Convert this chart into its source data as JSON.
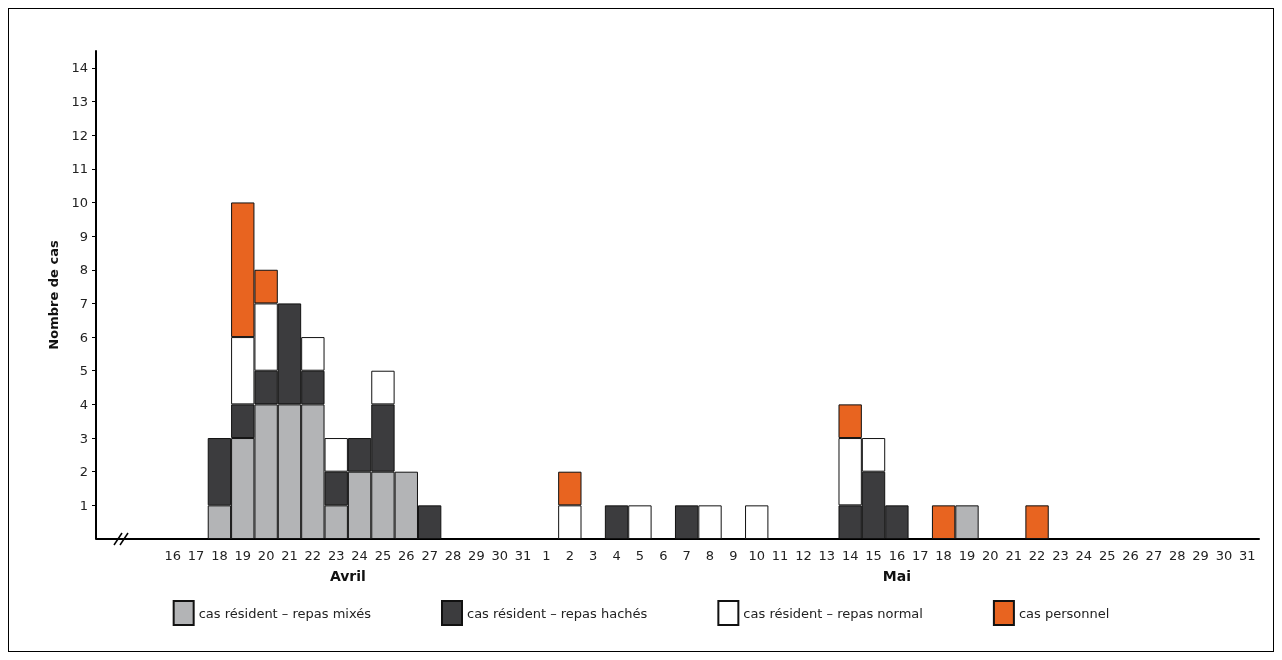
{
  "chart_data": {
    "type": "bar",
    "stacked": true,
    "ylabel": "Nombre de cas",
    "categories": [
      "16",
      "17",
      "18",
      "19",
      "20",
      "21",
      "22",
      "23",
      "24",
      "25",
      "26",
      "27",
      "28",
      "29",
      "30",
      "31",
      "1",
      "2",
      "3",
      "4",
      "5",
      "6",
      "7",
      "8",
      "9",
      "10",
      "11",
      "12",
      "13",
      "14",
      "15",
      "16",
      "17",
      "18",
      "19",
      "20",
      "21",
      "22",
      "23",
      "24",
      "25",
      "26",
      "27",
      "28",
      "29",
      "30",
      "31"
    ],
    "series": [
      {
        "name": "cas résident – repas mixés",
        "color": "#b3b4b6",
        "values": [
          null,
          null,
          1,
          3,
          4,
          4,
          4,
          1,
          2,
          2,
          2,
          null,
          null,
          null,
          null,
          null,
          null,
          null,
          null,
          null,
          null,
          null,
          null,
          null,
          null,
          null,
          null,
          null,
          null,
          null,
          null,
          null,
          null,
          null,
          1,
          null,
          null,
          null,
          null,
          null,
          null,
          null,
          null,
          null,
          null,
          null,
          null
        ]
      },
      {
        "name": "cas résident – repas hachés",
        "color": "#3c3c3e",
        "values": [
          null,
          null,
          2,
          1,
          1,
          3,
          1,
          1,
          1,
          2,
          null,
          1,
          null,
          null,
          null,
          null,
          null,
          null,
          null,
          1,
          null,
          null,
          1,
          null,
          null,
          null,
          null,
          null,
          null,
          1,
          2,
          1,
          null,
          null,
          null,
          null,
          null,
          null,
          null,
          null,
          null,
          null,
          null,
          null,
          null,
          null,
          null
        ]
      },
      {
        "name": "cas résident – repas normal",
        "color": "#ffffff",
        "values": [
          null,
          null,
          null,
          2,
          2,
          null,
          1,
          1,
          null,
          1,
          null,
          null,
          null,
          null,
          null,
          null,
          null,
          1,
          null,
          null,
          1,
          null,
          null,
          1,
          null,
          1,
          null,
          null,
          null,
          2,
          1,
          null,
          null,
          null,
          null,
          null,
          null,
          null,
          null,
          null,
          null,
          null,
          null,
          null,
          null,
          null,
          null
        ]
      },
      {
        "name": "cas personnel",
        "color": "#e86420",
        "values": [
          null,
          null,
          null,
          4,
          1,
          null,
          null,
          null,
          null,
          null,
          null,
          null,
          null,
          null,
          null,
          null,
          null,
          1,
          null,
          null,
          null,
          null,
          null,
          null,
          null,
          null,
          null,
          null,
          null,
          1,
          null,
          null,
          null,
          1,
          null,
          null,
          null,
          1,
          null,
          null,
          null,
          null,
          null,
          null,
          null,
          null,
          null
        ]
      }
    ],
    "annotations": [
      "Avril",
      "Mai"
    ],
    "ylim": [
      0,
      14.5
    ],
    "yticks": [
      1,
      2,
      3,
      4,
      5,
      6,
      7,
      8,
      9,
      10,
      11,
      12,
      13,
      14
    ],
    "grid": false,
    "legend": "bottom"
  }
}
